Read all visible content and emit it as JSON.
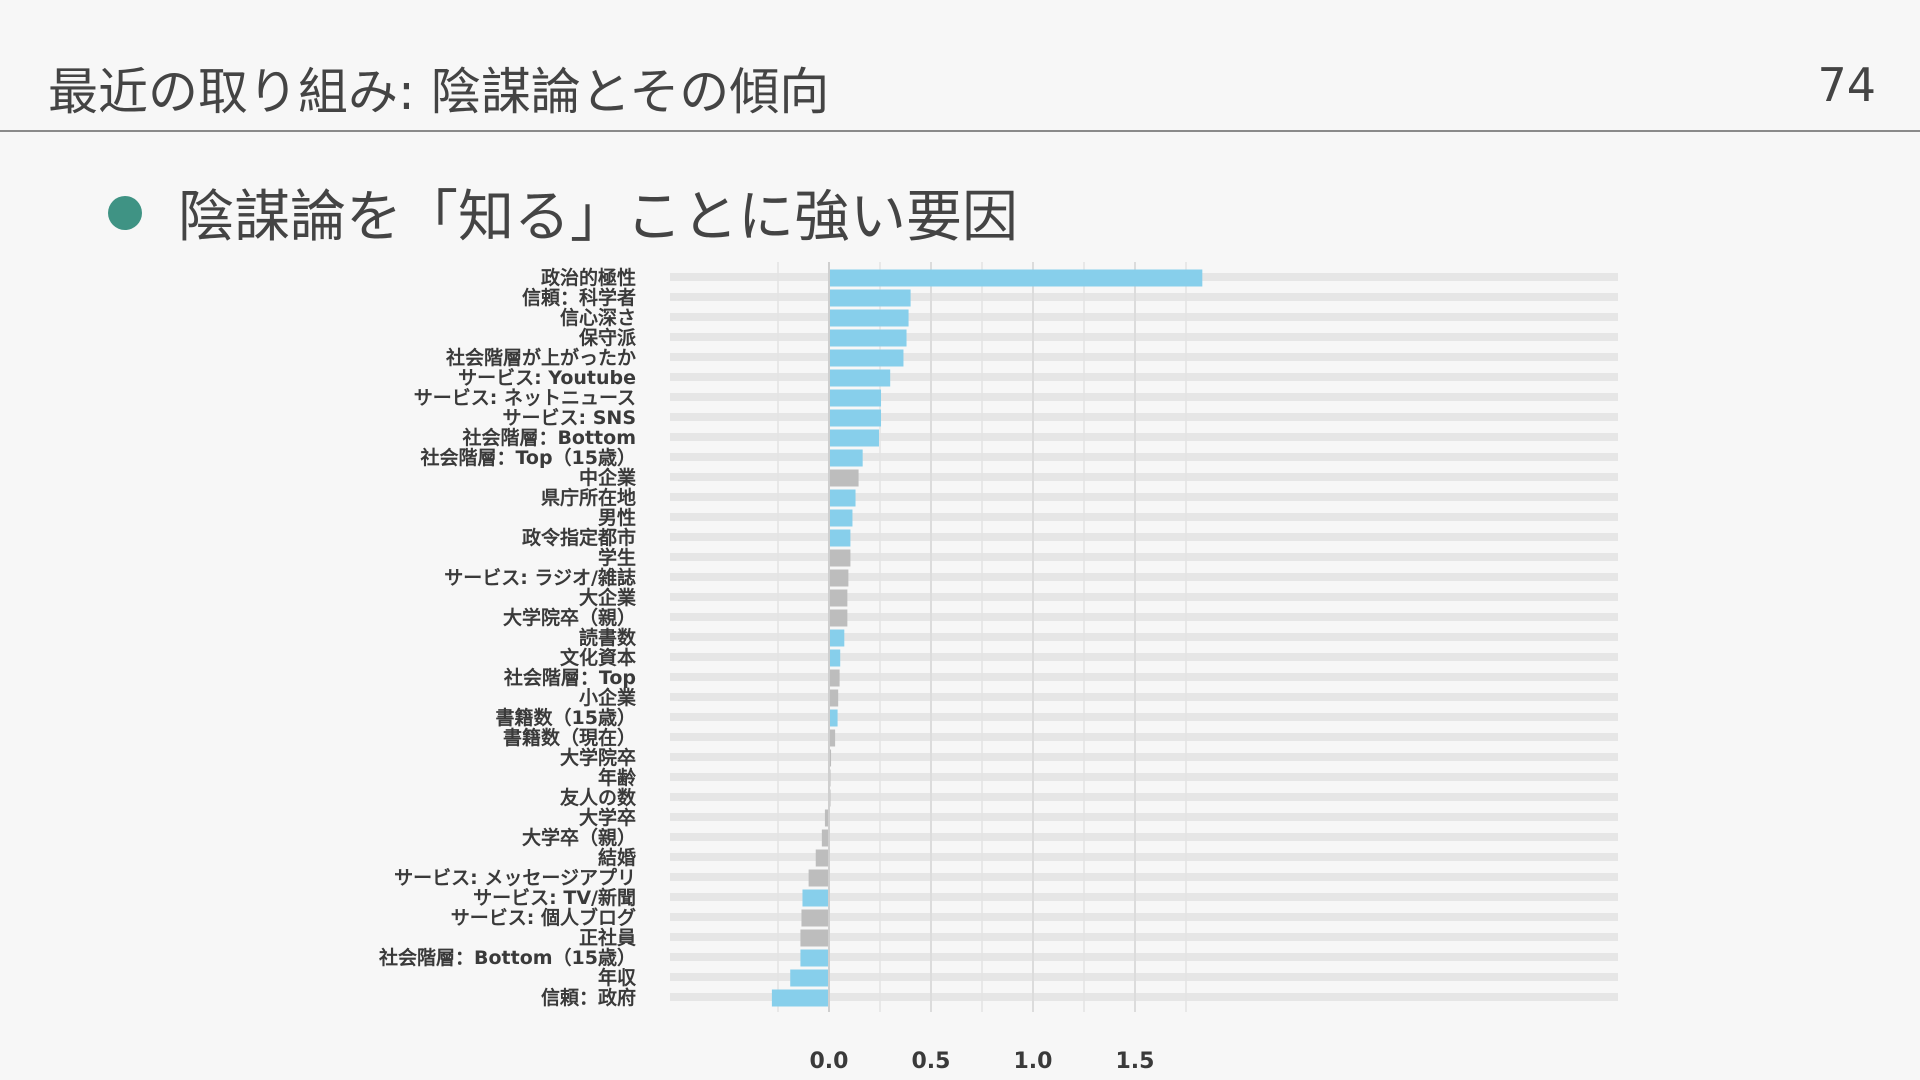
{
  "slide": {
    "title": "最近の取り組み: 陰謀論とその傾向",
    "page_number": "74",
    "bullet": "陰謀論を「知る」ことに強い要因"
  },
  "colors": {
    "significant": "#87cfeb",
    "non_significant": "#bdbdbd",
    "bullet": "#3f9384",
    "track": "#e6e6e6"
  },
  "chart_data": {
    "type": "bar",
    "orientation": "horizontal",
    "title": "",
    "xlabel": "",
    "ylabel": "",
    "xlim": [
      -0.4,
      1.95
    ],
    "xticks": [
      0.0,
      0.5,
      1.0,
      1.5
    ],
    "xtick_labels": [
      "0.0",
      "0.5",
      "1.0",
      "1.5"
    ],
    "grid": true,
    "legend": "none",
    "categories": [
      "政治的極性",
      "信頼：科学者",
      "信心深さ",
      "保守派",
      "社会階層が上がったか",
      "サービス: Youtube",
      "サービス: ネットニュース",
      "サービス: SNS",
      "社会階層：Bottom",
      "社会階層：Top（15歳）",
      "中企業",
      "県庁所在地",
      "男性",
      "政令指定都市",
      "学生",
      "サービス: ラジオ/雑誌",
      "大企業",
      "大学院卒（親）",
      "読書数",
      "文化資本",
      "社会階層：Top",
      "小企業",
      "書籍数（15歳）",
      "書籍数（現在）",
      "大学院卒",
      "年齢",
      "友人の数",
      "大学卒",
      "大学卒（親）",
      "結婚",
      "サービス: メッセージアプリ",
      "サービス: TV/新聞",
      "サービス: 個人ブログ",
      "正社員",
      "社会階層：Bottom（15歳）",
      "年収",
      "信頼：政府"
    ],
    "values": [
      1.83,
      0.4,
      0.39,
      0.38,
      0.365,
      0.3,
      0.255,
      0.255,
      0.245,
      0.165,
      0.145,
      0.13,
      0.115,
      0.105,
      0.105,
      0.095,
      0.09,
      0.09,
      0.075,
      0.055,
      0.052,
      0.045,
      0.042,
      0.03,
      0.01,
      0.003,
      0.0,
      -0.02,
      -0.035,
      -0.065,
      -0.1,
      -0.13,
      -0.135,
      -0.14,
      -0.14,
      -0.19,
      -0.28
    ],
    "significant": [
      true,
      true,
      true,
      true,
      true,
      true,
      true,
      true,
      true,
      true,
      false,
      true,
      true,
      true,
      false,
      false,
      false,
      false,
      true,
      true,
      false,
      false,
      true,
      false,
      false,
      false,
      false,
      false,
      false,
      false,
      false,
      true,
      false,
      false,
      true,
      true,
      true
    ]
  }
}
